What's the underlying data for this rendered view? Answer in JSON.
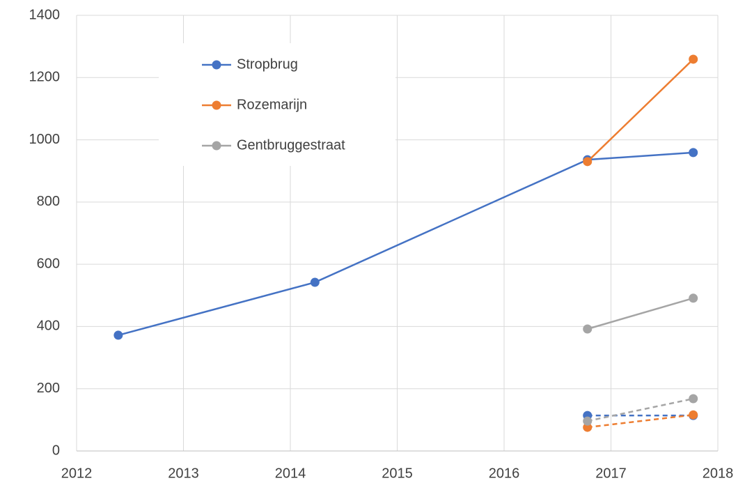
{
  "chart_data": {
    "type": "line",
    "xlim": [
      2012,
      2018
    ],
    "xticks": [
      2012,
      2013,
      2014,
      2015,
      2016,
      2017,
      2018
    ],
    "ylim": [
      0,
      1400
    ],
    "yticks": [
      0,
      200,
      400,
      600,
      800,
      1000,
      1200,
      1400
    ],
    "grid": true,
    "legend": "top-left",
    "series": [
      {
        "name": "Stropbrug",
        "color": "#4472c4",
        "x": [
          2012.39,
          2014.23,
          2016.78,
          2017.77
        ],
        "values": [
          372,
          542,
          936,
          959
        ]
      },
      {
        "name": "Rozemarijn",
        "color": "#ed7d31",
        "x": [
          2016.78,
          2017.77
        ],
        "values": [
          930,
          1259
        ]
      },
      {
        "name": "Gentbruggestraat",
        "color": "#a5a5a5",
        "x": [
          2016.78,
          2017.77
        ],
        "values": [
          392,
          491
        ]
      },
      {
        "color": "#4472c4",
        "dashed": true,
        "x": [
          2016.78,
          2017.77
        ],
        "values": [
          114,
          114
        ]
      },
      {
        "color": "#ed7d31",
        "dashed": true,
        "x": [
          2016.78,
          2017.77
        ],
        "values": [
          76,
          116
        ]
      },
      {
        "color": "#a5a5a5",
        "dashed": true,
        "x": [
          2016.78,
          2017.77
        ],
        "values": [
          96,
          168
        ]
      }
    ]
  }
}
